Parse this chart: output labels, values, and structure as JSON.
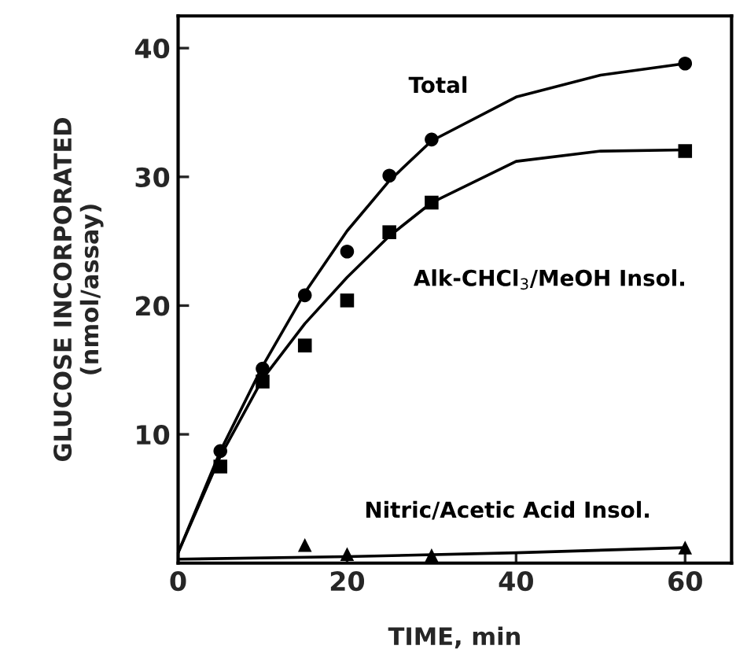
{
  "chart_data": {
    "type": "scatter",
    "xlabel": "TIME, min",
    "ylabel": "GLUCOSE INCORPORATED\n(nmol/assay)",
    "xlim": [
      0,
      65.5
    ],
    "ylim": [
      0,
      42.5
    ],
    "xticks": [
      0,
      20,
      40,
      60
    ],
    "yticks": [
      10,
      20,
      30,
      40
    ],
    "grid": false,
    "legend": false,
    "series": [
      {
        "name": "Total",
        "marker": "circle",
        "color": "#000000",
        "x": [
          5,
          10,
          15,
          20,
          25,
          30,
          60
        ],
        "values": [
          8.7,
          15.1,
          20.8,
          24.2,
          30.1,
          32.9,
          38.8
        ]
      },
      {
        "name": "Alk-CHCl$_{3}$/MeOH Insol.",
        "marker": "square",
        "color": "#000000",
        "x": [
          5,
          10,
          15,
          20,
          25,
          30,
          60
        ],
        "values": [
          7.5,
          14.1,
          16.9,
          20.4,
          25.7,
          28.0,
          32.0
        ]
      },
      {
        "name": "Nitric/Acetic Acid Insol.",
        "marker": "triangle",
        "color": "#000000",
        "x": [
          15,
          20,
          30,
          60
        ],
        "values": [
          1.4,
          0.7,
          0.6,
          1.2
        ]
      },
      {
        "type": "line",
        "color": "#000000",
        "line_style": "solid",
        "x": [
          0,
          5,
          10,
          15,
          20,
          25,
          30,
          40,
          50,
          60
        ],
        "values": [
          0.8,
          8.7,
          15.3,
          21.0,
          25.8,
          29.7,
          32.8,
          36.2,
          37.9,
          38.8
        ]
      },
      {
        "type": "line",
        "color": "#000000",
        "line_style": "solid",
        "x": [
          0,
          5,
          10,
          15,
          20,
          25,
          30,
          40,
          50,
          60
        ],
        "values": [
          0.8,
          8.3,
          14.3,
          18.6,
          22.2,
          25.4,
          28.0,
          31.2,
          32.0,
          32.1
        ]
      },
      {
        "type": "line",
        "color": "#000000",
        "line_style": "solid",
        "x": [
          0,
          20,
          40,
          60
        ],
        "values": [
          0.3,
          0.5,
          0.8,
          1.2
        ]
      }
    ]
  }
}
